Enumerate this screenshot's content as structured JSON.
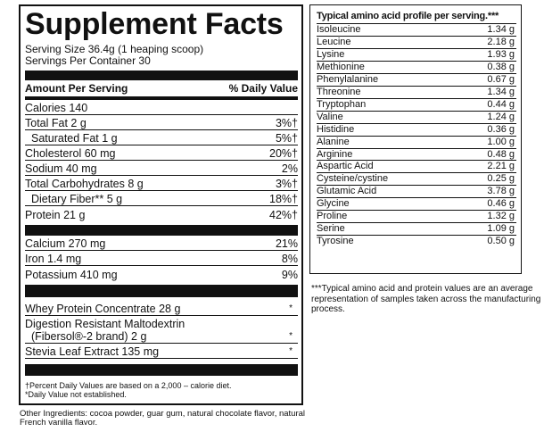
{
  "facts": {
    "title": "Supplement Facts",
    "serving_size": "Serving Size 36.4g (1 heaping scoop)",
    "servings_per_container": "Servings Per Container 30",
    "header_amount": "Amount Per Serving",
    "header_dv": "% Daily Value",
    "nutrients": [
      {
        "label": "Calories 140",
        "dv": ""
      },
      {
        "label": "Total Fat 2 g",
        "dv": "3%†"
      },
      {
        "label": "Saturated Fat 1 g",
        "dv": "5%†"
      },
      {
        "label": "Cholesterol 60 mg",
        "dv": "20%†"
      },
      {
        "label": "Sodium 40 mg",
        "dv": "2%"
      },
      {
        "label": "Total Carbohydrates 8 g",
        "dv": "3%†"
      },
      {
        "label": "Dietary Fiber** 5 g",
        "dv": "18%†"
      },
      {
        "label": "Protein 21 g",
        "dv": "42%†"
      }
    ],
    "minerals": [
      {
        "label": "Calcium 270 mg",
        "dv": "21%"
      },
      {
        "label": "Iron 1.4 mg",
        "dv": "8%"
      },
      {
        "label": "Potassium 410 mg",
        "dv": "9%"
      }
    ],
    "ingredients": [
      {
        "label": "Whey Protein Concentrate 28 g",
        "dv": "*"
      },
      {
        "label": "Digestion Resistant Maltodextrin",
        "label2": "(Fibersol®-2 brand) 2 g",
        "dv": "*"
      },
      {
        "label": "Stevia Leaf Extract 135 mg",
        "dv": "*"
      }
    ],
    "footnote1": "†Percent Daily Values are based on a 2,000 – calorie diet.",
    "footnote2": "*Daily Value not established."
  },
  "other_ingredients": "Other Ingredients: cocoa powder, guar gum, natural chocolate flavor, natural French vanilla flavor.",
  "amino": {
    "title": "Typical amino acid profile per serving.***",
    "rows": [
      {
        "name": "Isoleucine",
        "value": "1.34 g"
      },
      {
        "name": "Leucine",
        "value": "2.18 g"
      },
      {
        "name": "Lysine",
        "value": "1.93 g"
      },
      {
        "name": "Methionine",
        "value": "0.38 g"
      },
      {
        "name": "Phenylalanine",
        "value": "0.67 g"
      },
      {
        "name": "Threonine",
        "value": "1.34 g"
      },
      {
        "name": "Tryptophan",
        "value": "0.44 g"
      },
      {
        "name": "Valine",
        "value": "1.24 g"
      },
      {
        "name": "Histidine",
        "value": "0.36 g"
      },
      {
        "name": "Alanine",
        "value": "1.00 g"
      },
      {
        "name": "Arginine",
        "value": "0.48 g"
      },
      {
        "name": "Aspartic Acid",
        "value": "2.21 g"
      },
      {
        "name": "Cysteine/cystine",
        "value": "0.25 g"
      },
      {
        "name": "Glutamic Acid",
        "value": "3.78 g"
      },
      {
        "name": "Glycine",
        "value": "0.46 g"
      },
      {
        "name": "Proline",
        "value": "1.32 g"
      },
      {
        "name": "Serine",
        "value": "1.09 g"
      },
      {
        "name": "Tyrosine",
        "value": "0.50 g"
      }
    ],
    "note": "***Typical amino acid and protein values are an average representation of samples taken across the manufacturing process."
  }
}
